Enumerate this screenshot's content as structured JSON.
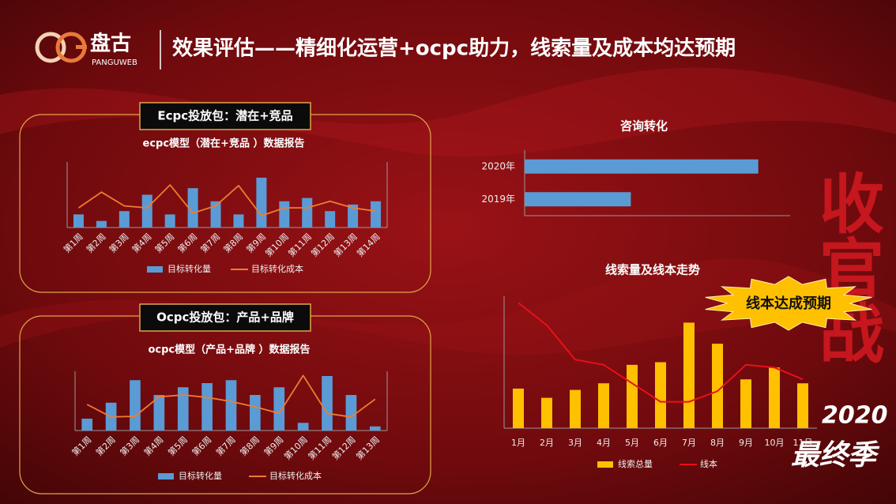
{
  "header": {
    "brand": "盘古",
    "brand_sub": "PANGUWEB",
    "title": "效果评估——精细化运营+ocpc助力，线索量及成本均达预期"
  },
  "decoration": {
    "headline": "收官战",
    "year": "2020",
    "season": "最终季"
  },
  "badge": "线本达成预期",
  "chart_data": [
    {
      "type": "combo",
      "panel_label": "Ecpc投放包：潜在+竞品",
      "title": "ecpc模型（潜在+竞品 ）数据报告",
      "categories": [
        "第1周",
        "第2周",
        "第3周",
        "第4周",
        "第5周",
        "第6周",
        "第7周",
        "第8周",
        "第9周",
        "第10周",
        "第11周",
        "第12周",
        "第13周",
        "第14周"
      ],
      "ylim": [
        0,
        10
      ],
      "series": [
        {
          "name": "目标转化量",
          "mark": "bar",
          "color": "#5b9bd5",
          "values": [
            2,
            1,
            2.5,
            5,
            2,
            6,
            4,
            2,
            7.6,
            4,
            4.5,
            2.5,
            3.5,
            4
          ]
        },
        {
          "name": "目标转化成本",
          "mark": "line",
          "color": "#ed7d31",
          "values": [
            3,
            5.4,
            3.3,
            3,
            6.5,
            2.2,
            3.3,
            6.4,
            1.8,
            3,
            3,
            4,
            3,
            2.5
          ]
        }
      ]
    },
    {
      "type": "combo",
      "panel_label": "Ocpc投放包：产品+品牌",
      "title": "ocpc模型（产品+品牌 ）数据报告",
      "categories": [
        "第1周",
        "第2周",
        "第3周",
        "第4周",
        "第5周",
        "第6周",
        "第7周",
        "第8周",
        "第9周",
        "第10周",
        "第11周",
        "第12周",
        "第13周"
      ],
      "ylim": [
        0,
        10
      ],
      "series": [
        {
          "name": "目标转化量",
          "mark": "bar",
          "color": "#5b9bd5",
          "values": [
            2,
            4.7,
            8.5,
            6,
            7.3,
            8,
            8.5,
            6,
            7.3,
            1.3,
            9.2,
            6,
            0.7
          ]
        },
        {
          "name": "目标转化成本",
          "mark": "line",
          "color": "#ed7d31",
          "values": [
            4.4,
            2.3,
            2.4,
            5.7,
            6,
            5.6,
            4.9,
            4,
            2.9,
            9.3,
            2.9,
            2.3,
            5.3
          ]
        }
      ]
    },
    {
      "type": "hbar",
      "title": "咨询转化",
      "categories": [
        "2020年",
        "2019年"
      ],
      "values": [
        88,
        40
      ],
      "color": "#5b9bd5",
      "xlim": [
        0,
        100
      ]
    },
    {
      "type": "combo",
      "title": "线索量及线本走势",
      "categories": [
        "1月",
        "2月",
        "3月",
        "4月",
        "5月",
        "6月",
        "7月",
        "8月",
        "9月",
        "10月",
        "11月"
      ],
      "ylim": [
        0,
        10
      ],
      "series": [
        {
          "name": "线索总量",
          "mark": "bar",
          "color": "#ffc000",
          "values": [
            3.0,
            2.3,
            2.9,
            3.4,
            4.8,
            5.0,
            8.0,
            6.4,
            3.7,
            4.6,
            3.4
          ]
        },
        {
          "name": "线本",
          "mark": "line",
          "color": "#e8101a",
          "values": [
            9.5,
            7.8,
            5.2,
            4.8,
            3.4,
            2.0,
            2.0,
            2.8,
            4.8,
            4.6,
            3.7
          ]
        }
      ]
    }
  ]
}
